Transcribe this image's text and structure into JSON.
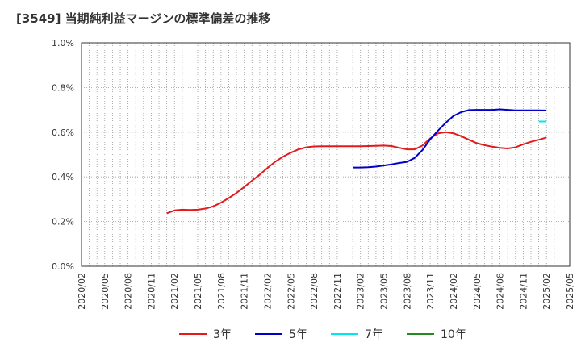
{
  "chart_data": {
    "type": "line",
    "title": "[3549]  当期純利益マージンの標準偏差の推移",
    "xlabel": "",
    "ylabel": "",
    "x_range": [
      "2020/02",
      "2025/05"
    ],
    "ylim": [
      0.0,
      1.0
    ],
    "yticks": [
      "0.0%",
      "0.2%",
      "0.4%",
      "0.6%",
      "0.8%",
      "1.0%"
    ],
    "xticks": [
      "2020/02",
      "2020/05",
      "2020/08",
      "2020/11",
      "2021/02",
      "2021/05",
      "2021/08",
      "2021/11",
      "2022/02",
      "2022/05",
      "2022/08",
      "2022/11",
      "2023/02",
      "2023/05",
      "2023/08",
      "2023/11",
      "2024/02",
      "2024/05",
      "2024/08",
      "2024/11",
      "2025/02",
      "2025/05"
    ],
    "grid": true,
    "legend_position": "bottom",
    "series": [
      {
        "name": "3年",
        "color": "#e31a1c",
        "points": [
          [
            "2021/01",
            0.237
          ],
          [
            "2021/02",
            0.25
          ],
          [
            "2021/03",
            0.253
          ],
          [
            "2021/04",
            0.252
          ],
          [
            "2021/05",
            0.253
          ],
          [
            "2021/06",
            0.258
          ],
          [
            "2021/07",
            0.268
          ],
          [
            "2021/08",
            0.285
          ],
          [
            "2021/09",
            0.305
          ],
          [
            "2021/10",
            0.328
          ],
          [
            "2021/11",
            0.355
          ],
          [
            "2021/12",
            0.383
          ],
          [
            "2022/01",
            0.41
          ],
          [
            "2022/02",
            0.44
          ],
          [
            "2022/03",
            0.468
          ],
          [
            "2022/04",
            0.49
          ],
          [
            "2022/05",
            0.508
          ],
          [
            "2022/06",
            0.523
          ],
          [
            "2022/07",
            0.532
          ],
          [
            "2022/08",
            0.536
          ],
          [
            "2022/09",
            0.537
          ],
          [
            "2022/10",
            0.537
          ],
          [
            "2022/11",
            0.537
          ],
          [
            "2022/12",
            0.537
          ],
          [
            "2023/01",
            0.537
          ],
          [
            "2023/02",
            0.537
          ],
          [
            "2023/03",
            0.538
          ],
          [
            "2023/04",
            0.539
          ],
          [
            "2023/05",
            0.54
          ],
          [
            "2023/06",
            0.538
          ],
          [
            "2023/07",
            0.53
          ],
          [
            "2023/08",
            0.523
          ],
          [
            "2023/09",
            0.523
          ],
          [
            "2023/10",
            0.54
          ],
          [
            "2023/11",
            0.572
          ],
          [
            "2023/12",
            0.595
          ],
          [
            "2024/01",
            0.6
          ],
          [
            "2024/02",
            0.595
          ],
          [
            "2024/03",
            0.582
          ],
          [
            "2024/04",
            0.566
          ],
          [
            "2024/05",
            0.551
          ],
          [
            "2024/06",
            0.542
          ],
          [
            "2024/07",
            0.535
          ],
          [
            "2024/08",
            0.53
          ],
          [
            "2024/09",
            0.527
          ],
          [
            "2024/10",
            0.532
          ],
          [
            "2024/11",
            0.546
          ],
          [
            "2024/12",
            0.557
          ],
          [
            "2025/01",
            0.566
          ],
          [
            "2025/02",
            0.576
          ]
        ]
      },
      {
        "name": "5年",
        "color": "#0000cc",
        "points": [
          [
            "2023/01",
            0.442
          ],
          [
            "2023/02",
            0.442
          ],
          [
            "2023/03",
            0.443
          ],
          [
            "2023/04",
            0.446
          ],
          [
            "2023/05",
            0.451
          ],
          [
            "2023/06",
            0.456
          ],
          [
            "2023/07",
            0.462
          ],
          [
            "2023/08",
            0.467
          ],
          [
            "2023/09",
            0.485
          ],
          [
            "2023/10",
            0.52
          ],
          [
            "2023/11",
            0.568
          ],
          [
            "2023/12",
            0.607
          ],
          [
            "2024/01",
            0.642
          ],
          [
            "2024/02",
            0.673
          ],
          [
            "2024/03",
            0.69
          ],
          [
            "2024/04",
            0.699
          ],
          [
            "2024/05",
            0.7
          ],
          [
            "2024/06",
            0.7
          ],
          [
            "2024/07",
            0.7
          ],
          [
            "2024/08",
            0.702
          ],
          [
            "2024/09",
            0.7
          ],
          [
            "2024/10",
            0.698
          ],
          [
            "2024/11",
            0.698
          ],
          [
            "2024/12",
            0.698
          ],
          [
            "2025/01",
            0.698
          ],
          [
            "2025/02",
            0.697
          ]
        ]
      },
      {
        "name": "7年",
        "color": "#00e5ee",
        "points": [
          [
            "2025/01",
            0.648
          ],
          [
            "2025/02",
            0.648
          ]
        ]
      },
      {
        "name": "10年",
        "color": "#228b22",
        "points": []
      }
    ]
  }
}
